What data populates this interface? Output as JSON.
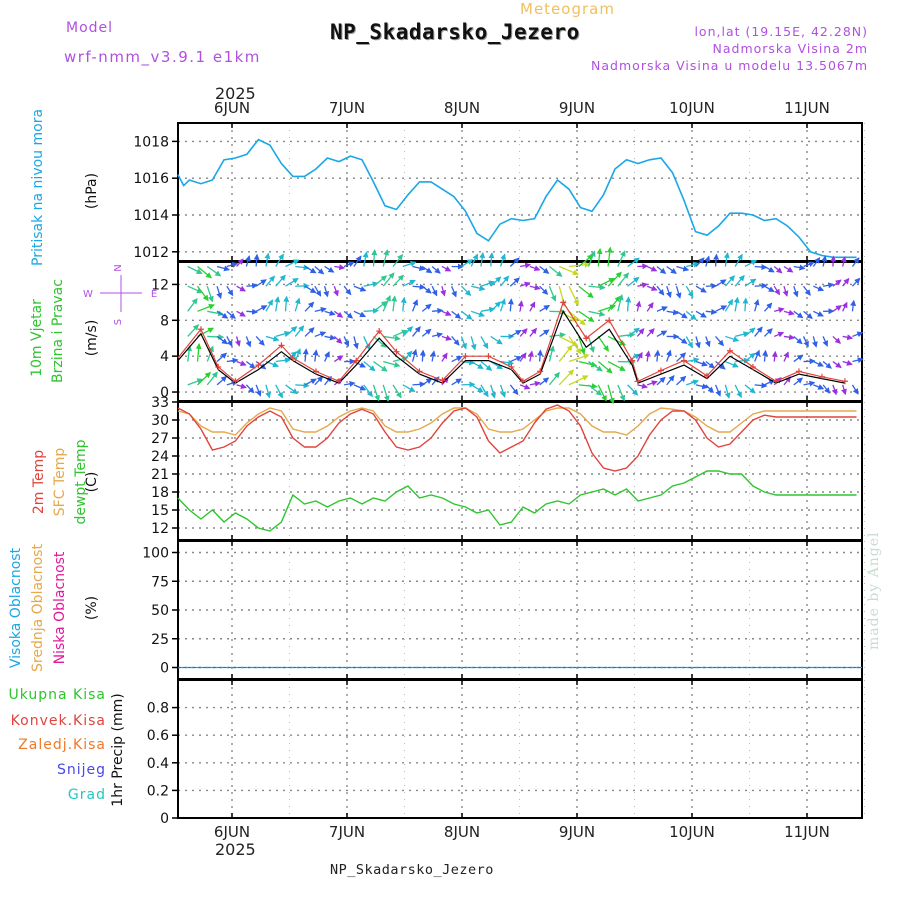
{
  "header": {
    "title": "NP_Skadarsko_Jezero",
    "subtitle": "Meteogram",
    "model_label": "Model",
    "model_name": "wrf-nmm_v3.9.1 e1km",
    "lonlat": "lon,lat (19.15E, 42.28N)",
    "elevation": "Nadmorska Visina 2m",
    "model_elevation": "Nadmorska Visina u modelu 13.5067m"
  },
  "footer": {
    "station": "NP_Skadarsko_Jezero",
    "credit": "made by Angel"
  },
  "time_axis": {
    "year": "2025",
    "days": [
      "6JUN",
      "7JUN",
      "8JUN",
      "9JUN",
      "10JUN",
      "11JUN"
    ]
  },
  "colors": {
    "pressure": "#1aa7e6",
    "wind_speed": "#000000",
    "wind_gust": "#e0443c",
    "temp_2m": "#e0443c",
    "temp_sfc": "#e5a84a",
    "temp_dewpt": "#2ec52e",
    "cloud_high": "#1aa7e6",
    "cloud_mid": "#e5a84a",
    "cloud_low": "#e0189c",
    "precip_total": "#2ec52e",
    "precip_conv": "#e0443c",
    "precip_frozen": "#f07828",
    "precip_snow": "#4848e8",
    "precip_graupel": "#20c8c0"
  },
  "panels": {
    "pressure": {
      "label": "Pritisak na nivou mora",
      "unit": "(hPa)"
    },
    "wind": {
      "label1": "10m Vjetar",
      "label2": "Brzina i Pravac",
      "unit": "(m/s)",
      "compass": {
        "n": "N",
        "s": "S",
        "e": "E",
        "w": "W"
      }
    },
    "temp": {
      "label1": "2m Temp",
      "label2": "SFC Temp",
      "label3": "dewpt Temp",
      "unit": "(C)"
    },
    "cloud": {
      "label1": "Visoka Oblacnost",
      "label2": "Srednja Oblacnost",
      "label3": "Niska Oblacnost",
      "unit": "(%)"
    },
    "precip": {
      "labels": [
        "Ukupna Kisa",
        "Konvek.Kisa",
        "Zaledj.Kisa",
        "Snijeg",
        "Grad"
      ],
      "axis_label": "1hr Precip (mm)"
    }
  },
  "chart_data": [
    {
      "type": "line",
      "name": "pressure",
      "x_day": [
        0,
        0.05,
        0.1,
        0.2,
        0.3,
        0.4,
        0.5,
        0.6,
        0.7,
        0.8,
        0.9,
        1.0,
        1.1,
        1.2,
        1.3,
        1.4,
        1.5,
        1.6,
        1.7,
        1.8,
        1.9,
        2.0,
        2.1,
        2.2,
        2.3,
        2.4,
        2.5,
        2.6,
        2.7,
        2.8,
        2.9,
        3.0,
        3.1,
        3.2,
        3.3,
        3.4,
        3.5,
        3.6,
        3.7,
        3.8,
        3.9,
        4.0,
        4.1,
        4.2,
        4.3,
        4.4,
        4.5,
        4.6,
        4.7,
        4.8,
        4.9,
        5.0,
        5.1,
        5.2,
        5.3,
        5.4,
        5.5,
        5.6,
        5.7,
        5.8,
        5.9,
        6.0,
        6.1,
        6.2
      ],
      "y": [
        1016.2,
        1015.6,
        1015.9,
        1015.7,
        1015.9,
        1017.0,
        1017.1,
        1017.3,
        1018.1,
        1017.8,
        1016.8,
        1016.1,
        1016.1,
        1016.5,
        1017.1,
        1016.9,
        1017.2,
        1017.0,
        1015.8,
        1014.5,
        1014.3,
        1015.1,
        1015.8,
        1015.8,
        1015.4,
        1015.0,
        1014.2,
        1013.0,
        1012.6,
        1013.5,
        1013.8,
        1013.7,
        1013.8,
        1015.0,
        1015.9,
        1015.4,
        1014.4,
        1014.2,
        1015.1,
        1016.5,
        1017.0,
        1016.8,
        1017.0,
        1017.1,
        1016.3,
        1014.8,
        1013.1,
        1012.9,
        1013.4,
        1014.1,
        1014.1,
        1014.0,
        1013.7,
        1013.8,
        1013.4,
        1012.8,
        1012.0,
        1011.8,
        1011.7,
        1011.7,
        1011.7,
        1011.7,
        1011.7,
        1011.7
      ],
      "ylim": [
        1011.5,
        1019
      ]
    },
    {
      "type": "line",
      "name": "wind",
      "x_day": [
        0,
        0.2,
        0.35,
        0.5,
        0.7,
        0.9,
        1.0,
        1.2,
        1.4,
        1.55,
        1.75,
        1.9,
        2.1,
        2.3,
        2.5,
        2.7,
        2.9,
        3.0,
        3.15,
        3.35,
        3.55,
        3.75,
        3.95,
        4.0,
        4.2,
        4.4,
        4.6,
        4.8,
        5.0,
        5.2,
        5.4,
        5.6,
        5.8,
        6.0,
        6.2
      ],
      "speed": [
        3.5,
        6.5,
        2.5,
        1.0,
        2.5,
        4.5,
        3.5,
        2.0,
        1.0,
        3.0,
        6.0,
        4.0,
        2.0,
        1.0,
        3.5,
        3.5,
        2.5,
        1.0,
        2.0,
        9.0,
        5.0,
        7.0,
        3.0,
        1.0,
        2.0,
        3.0,
        1.5,
        4.0,
        2.5,
        1.0,
        2.0,
        1.5,
        1.0,
        3.0,
        3.5
      ],
      "gust": [
        3.8,
        7.0,
        2.8,
        1.2,
        3.0,
        5.2,
        3.8,
        2.3,
        1.2,
        3.5,
        6.8,
        4.5,
        2.3,
        1.3,
        4.0,
        4.0,
        2.8,
        1.2,
        2.3,
        10.0,
        6.0,
        8.0,
        3.5,
        1.2,
        2.4,
        3.5,
        1.8,
        4.6,
        2.8,
        1.2,
        2.3,
        1.7,
        1.2,
        3.4,
        4.0
      ],
      "ylim": [
        -1,
        14.5
      ]
    },
    {
      "type": "line",
      "name": "temperature",
      "x_day": [
        0,
        0.1,
        0.2,
        0.3,
        0.4,
        0.5,
        0.6,
        0.7,
        0.8,
        0.9,
        1.0,
        1.1,
        1.2,
        1.3,
        1.4,
        1.5,
        1.6,
        1.7,
        1.8,
        1.9,
        2.0,
        2.1,
        2.2,
        2.3,
        2.4,
        2.5,
        2.6,
        2.7,
        2.8,
        2.9,
        3.0,
        3.1,
        3.2,
        3.3,
        3.4,
        3.5,
        3.6,
        3.7,
        3.8,
        3.9,
        4.0,
        4.1,
        4.2,
        4.3,
        4.4,
        4.5,
        4.6,
        4.7,
        4.8,
        4.9,
        5.0,
        5.1,
        5.2,
        5.3,
        5.4,
        5.5,
        5.6,
        5.7,
        5.8,
        5.9,
        6.0,
        6.1,
        6.2
      ],
      "t2m": [
        32.0,
        31.0,
        28.5,
        25.0,
        25.5,
        26.5,
        29.0,
        30.5,
        31.5,
        30.5,
        27.0,
        25.5,
        25.5,
        27.0,
        29.5,
        31.0,
        31.8,
        31.0,
        28.0,
        25.5,
        25.0,
        25.5,
        27.0,
        29.5,
        31.5,
        32.0,
        30.5,
        26.5,
        24.5,
        25.5,
        26.5,
        29.5,
        31.8,
        32.5,
        31.5,
        29.0,
        24.5,
        22.0,
        21.5,
        22.0,
        24.0,
        27.5,
        30.0,
        31.5,
        31.5,
        30.0,
        27.0,
        25.5,
        26.0,
        28.0,
        30.0,
        30.8,
        30.5,
        30.5,
        30.5,
        30.5,
        30.5,
        30.5,
        30.5,
        30.5,
        30.5,
        30.5,
        30.5
      ],
      "tsfc": [
        31.5,
        31.0,
        29.0,
        28.0,
        28.0,
        27.5,
        29.5,
        31.0,
        32.0,
        31.5,
        28.5,
        28.0,
        28.0,
        29.0,
        30.5,
        31.5,
        32.0,
        31.5,
        29.0,
        28.0,
        28.0,
        28.5,
        29.5,
        31.0,
        32.0,
        32.0,
        31.0,
        28.5,
        28.0,
        28.0,
        28.5,
        30.0,
        31.5,
        32.0,
        32.0,
        31.0,
        29.0,
        28.0,
        28.0,
        27.5,
        29.0,
        31.0,
        32.0,
        31.8,
        31.5,
        30.5,
        29.0,
        28.0,
        28.0,
        29.5,
        31.0,
        31.5,
        31.5,
        31.5,
        31.5,
        31.5,
        31.5,
        31.5,
        31.5,
        31.5,
        31.5,
        31.5,
        31.5
      ],
      "dewpt": [
        17.0,
        15.0,
        13.5,
        15.0,
        13.0,
        14.5,
        13.5,
        12.0,
        11.5,
        13.0,
        17.5,
        16.0,
        16.5,
        15.5,
        16.5,
        17.0,
        16.0,
        17.0,
        16.5,
        18.0,
        19.0,
        17.0,
        17.5,
        17.0,
        16.0,
        15.5,
        14.5,
        15.0,
        12.5,
        13.0,
        15.5,
        14.5,
        16.0,
        16.5,
        16.0,
        17.5,
        18.0,
        18.5,
        17.5,
        18.5,
        16.5,
        17.0,
        17.5,
        19.0,
        19.5,
        20.5,
        21.5,
        21.5,
        21.0,
        21.0,
        19.0,
        18.0,
        17.5,
        17.5,
        17.5,
        17.5,
        17.5,
        17.5,
        17.5,
        17.5,
        17.5,
        17.5,
        17.5
      ],
      "ylim": [
        10,
        33
      ],
      "yticks": [
        12,
        15,
        18,
        21,
        24,
        27,
        30,
        33
      ]
    },
    {
      "type": "line",
      "name": "cloud",
      "series": [
        {
          "name": "Visoka Oblacnost",
          "values": [
            0,
            0
          ]
        },
        {
          "name": "Srednja Oblacnost",
          "values": [
            0,
            0
          ]
        },
        {
          "name": "Niska Oblacnost",
          "values": [
            0,
            0
          ]
        }
      ],
      "ylim": [
        -10,
        110
      ],
      "yticks": [
        0,
        25,
        50,
        75,
        100
      ]
    },
    {
      "type": "bar",
      "name": "precip",
      "values": [],
      "ylim": [
        0,
        1.0
      ],
      "yticks": [
        "0",
        "0.2",
        "0.4",
        "0.6",
        "0.8"
      ]
    }
  ]
}
